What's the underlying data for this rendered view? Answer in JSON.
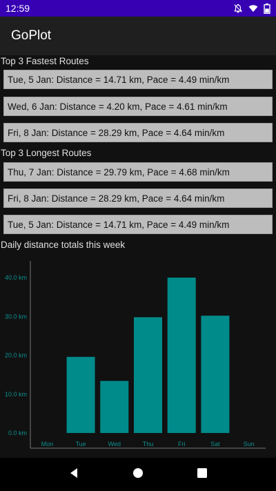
{
  "status_bar": {
    "time": "12:59",
    "icons": [
      "notifications-off-icon",
      "wifi-icon",
      "battery-icon"
    ]
  },
  "app": {
    "title": "GoPlot"
  },
  "fastest": {
    "title": "Top 3 Fastest Routes",
    "items": [
      "Tue, 5 Jan: Distance = 14.71 km, Pace = 4.49 min/km",
      "Wed, 6 Jan: Distance = 4.20 km, Pace = 4.61 min/km",
      "Fri, 8 Jan: Distance = 28.29 km, Pace = 4.64 min/km"
    ]
  },
  "longest": {
    "title": "Top 3 Longest Routes",
    "items": [
      "Thu, 7 Jan: Distance = 29.79 km, Pace = 4.68 min/km",
      "Fri, 8 Jan: Distance = 28.29 km, Pace = 4.64 min/km",
      "Tue, 5 Jan: Distance = 14.71 km, Pace = 4.49 min/km"
    ]
  },
  "chart_section": {
    "title": "Daily distance totals this week"
  },
  "chart_data": {
    "type": "bar",
    "title": "Daily distance totals this week",
    "categories": [
      "Mon",
      "Tue",
      "Wed",
      "Thu",
      "Fri",
      "Sat",
      "Sun"
    ],
    "values": [
      0,
      19.6,
      13.4,
      29.8,
      40.0,
      30.2,
      0
    ],
    "y_ticks": [
      "0.0 km",
      "10.0 km",
      "20.0 km",
      "30.0 km",
      "40.0 km"
    ],
    "ylim": [
      0,
      40
    ],
    "grid": false,
    "bar_color": "#008b8b",
    "axis_label_color": "#0f8f8f"
  },
  "nav": {
    "icons": [
      "back-icon",
      "home-icon",
      "recents-icon"
    ]
  },
  "colors": {
    "status_bar": "#3700b3",
    "background": "#111111",
    "card": "#bdbdbd"
  }
}
